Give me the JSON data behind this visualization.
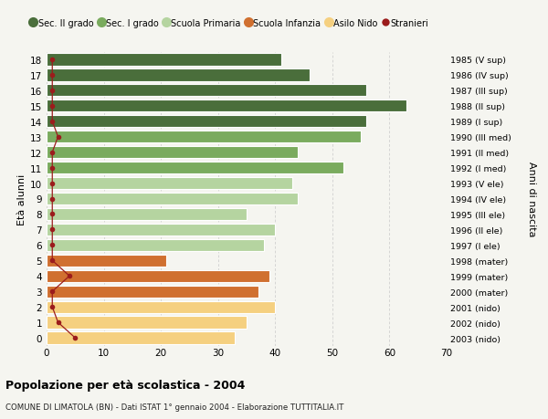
{
  "ages": [
    18,
    17,
    16,
    15,
    14,
    13,
    12,
    11,
    10,
    9,
    8,
    7,
    6,
    5,
    4,
    3,
    2,
    1,
    0
  ],
  "bar_values": [
    41,
    46,
    56,
    63,
    56,
    55,
    44,
    52,
    43,
    44,
    35,
    40,
    38,
    21,
    39,
    37,
    40,
    35,
    33
  ],
  "stranieri_values": [
    1,
    1,
    1,
    1,
    1,
    2,
    1,
    1,
    1,
    1,
    1,
    1,
    1,
    1,
    4,
    1,
    1,
    2,
    5
  ],
  "right_labels": [
    "1985 (V sup)",
    "1986 (IV sup)",
    "1987 (III sup)",
    "1988 (II sup)",
    "1989 (I sup)",
    "1990 (III med)",
    "1991 (II med)",
    "1992 (I med)",
    "1993 (V ele)",
    "1994 (IV ele)",
    "1995 (III ele)",
    "1996 (II ele)",
    "1997 (I ele)",
    "1998 (mater)",
    "1999 (mater)",
    "2000 (mater)",
    "2001 (nido)",
    "2002 (nido)",
    "2003 (nido)"
  ],
  "bar_colors": [
    "#4a6e3b",
    "#4a6e3b",
    "#4a6e3b",
    "#4a6e3b",
    "#4a6e3b",
    "#7aab5e",
    "#7aab5e",
    "#7aab5e",
    "#b5d4a0",
    "#b5d4a0",
    "#b5d4a0",
    "#b5d4a0",
    "#b5d4a0",
    "#d07030",
    "#d07030",
    "#d07030",
    "#f5d080",
    "#f5d080",
    "#f5d080"
  ],
  "stranieri_color": "#9b1c1c",
  "bg_color": "#f5f5f0",
  "grid_color": "#c8c8c8",
  "xlim": [
    0,
    70
  ],
  "title": "Popolazione per età scolastica - 2004",
  "subtitle": "COMUNE DI LIMATOLA (BN) - Dati ISTAT 1° gennaio 2004 - Elaborazione TUTTITALIA.IT",
  "ylabel": "Età alunni",
  "ylabel_right": "Anni di nascita",
  "legend_items": [
    {
      "label": "Sec. II grado",
      "color": "#4a6e3b",
      "type": "circle"
    },
    {
      "label": "Sec. I grado",
      "color": "#7aab5e",
      "type": "circle"
    },
    {
      "label": "Scuola Primaria",
      "color": "#b5d4a0",
      "type": "circle"
    },
    {
      "label": "Scuola Infanzia",
      "color": "#d07030",
      "type": "circle"
    },
    {
      "label": "Asilo Nido",
      "color": "#f5d080",
      "type": "circle"
    },
    {
      "label": "Stranieri",
      "color": "#9b1c1c",
      "type": "dot"
    }
  ]
}
